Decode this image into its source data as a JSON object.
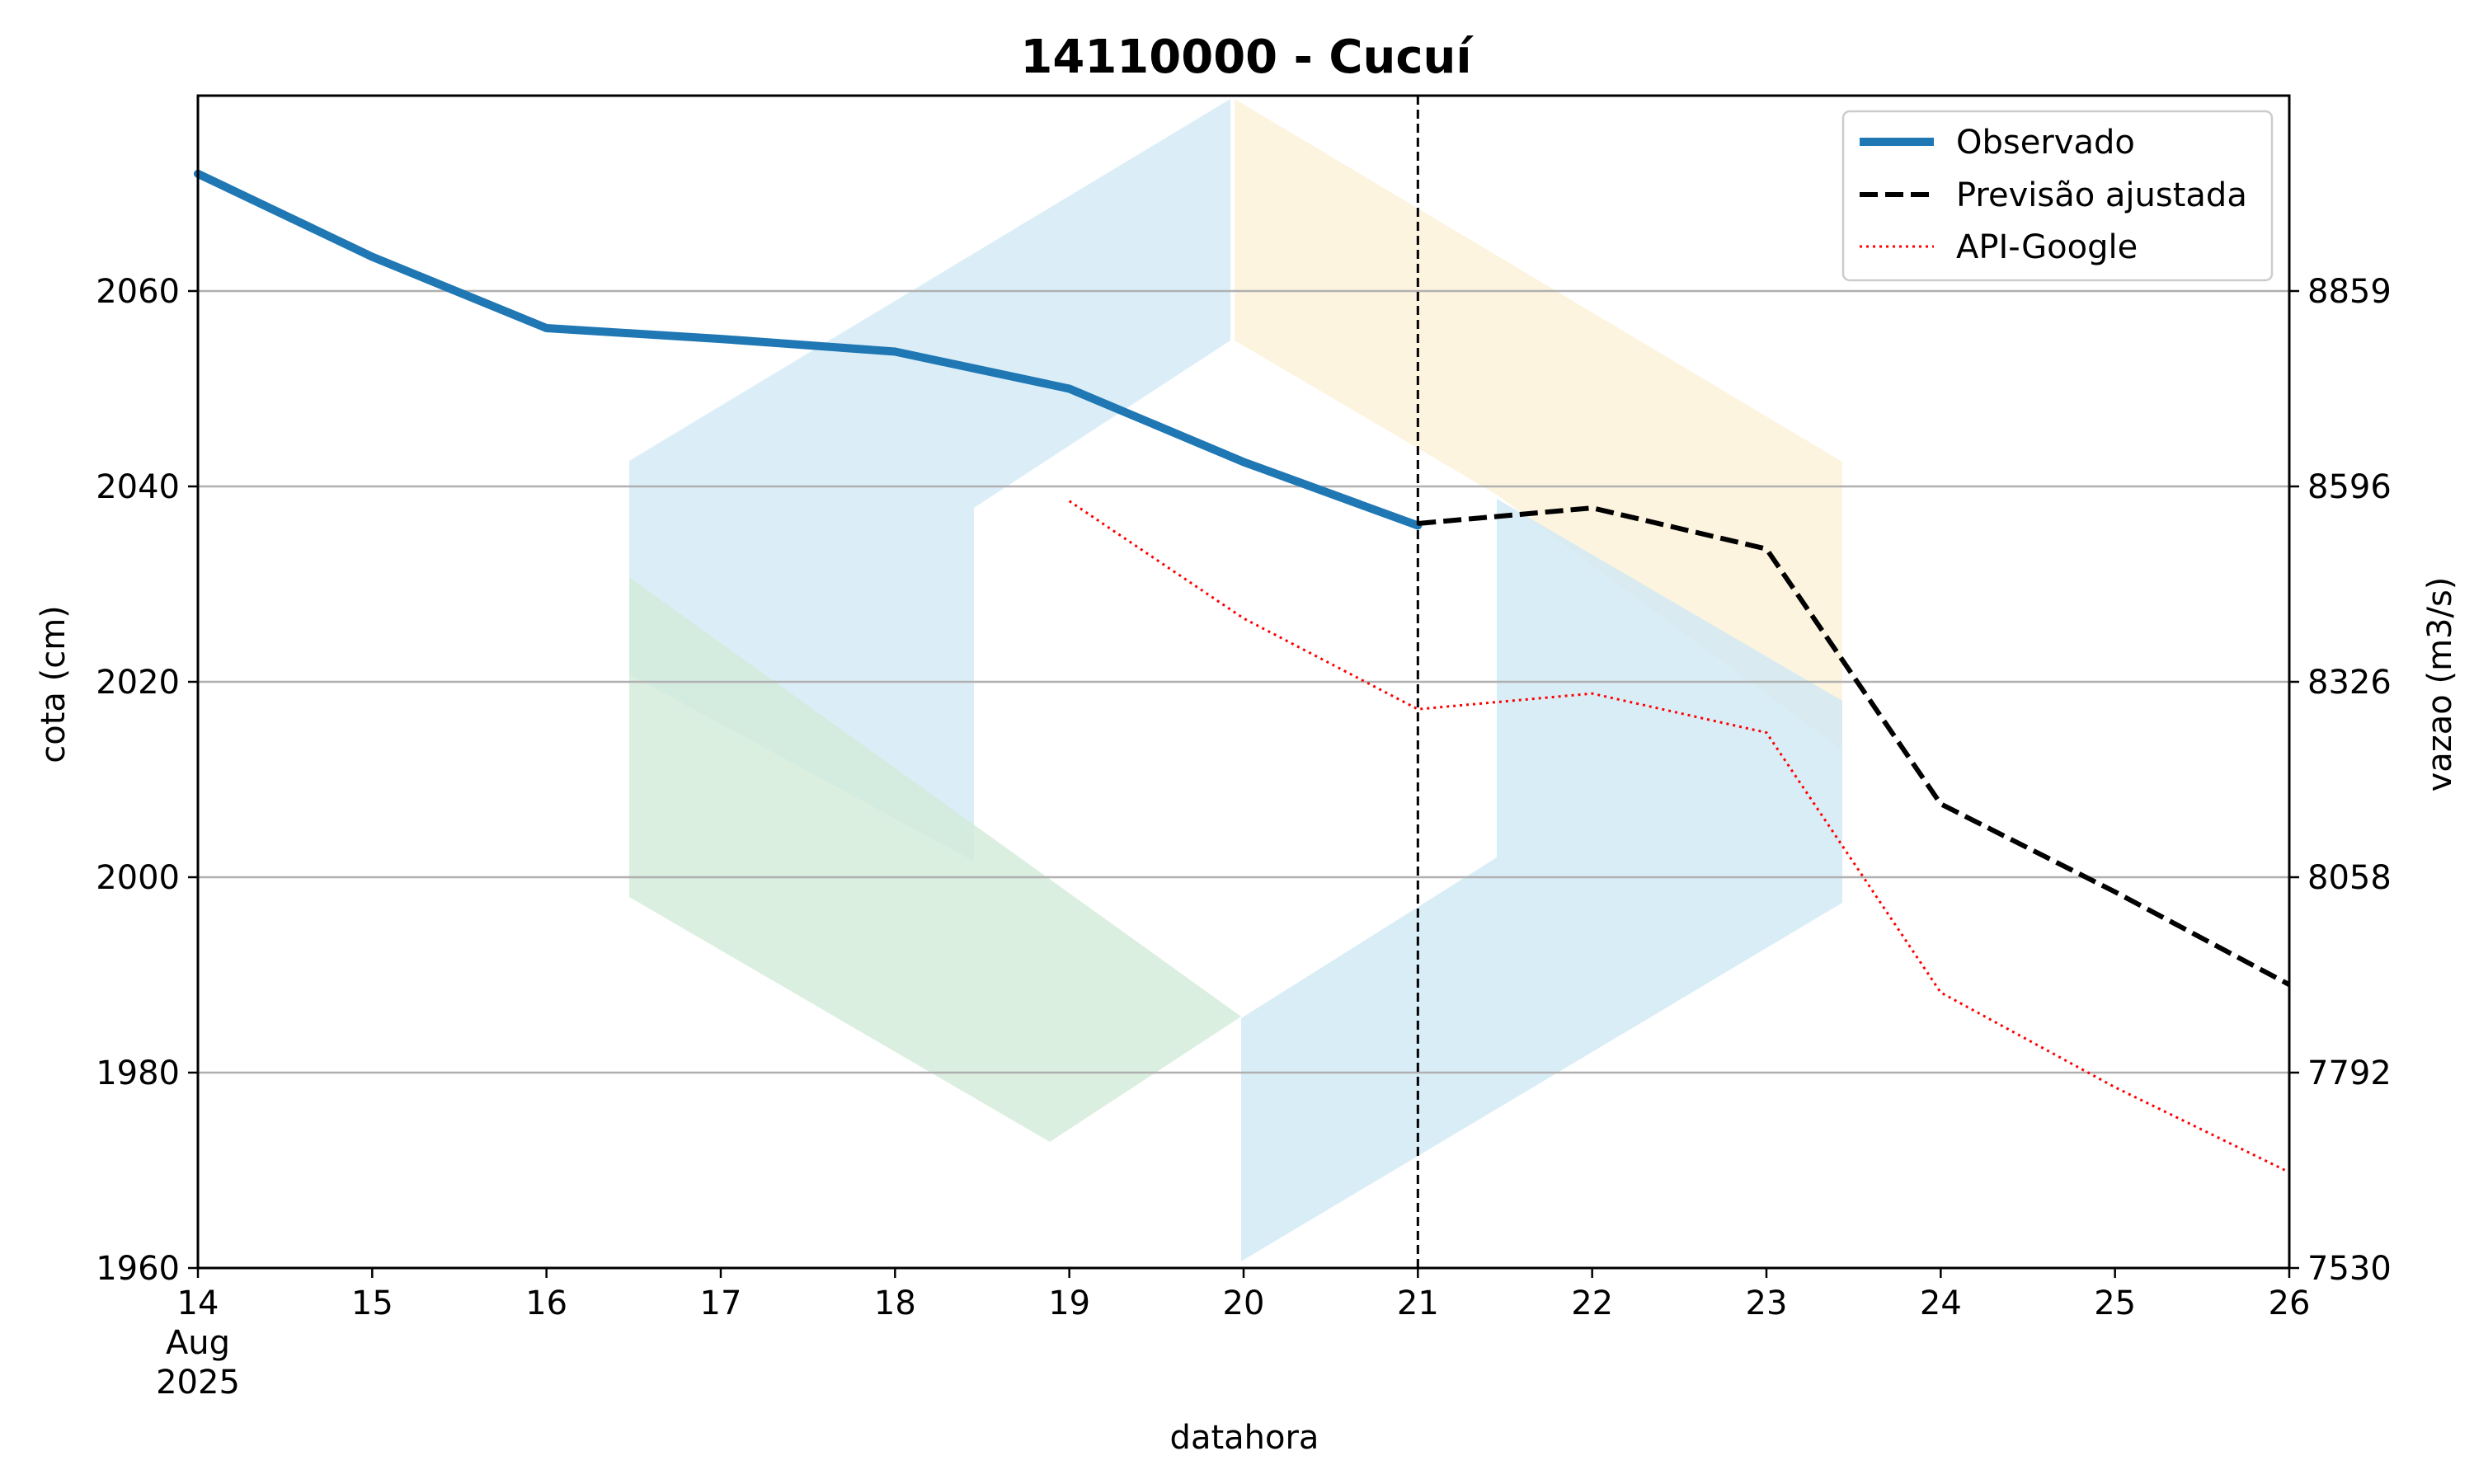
{
  "chart_data": {
    "type": "line",
    "title": "14110000 - Cucuí",
    "xlabel": "datahora",
    "ylabel": "cota (cm)",
    "y2label": "vazao (m3/s)",
    "x_tick_labels": [
      "14",
      "15",
      "16",
      "17",
      "18",
      "19",
      "20",
      "21",
      "22",
      "23",
      "24",
      "25",
      "26"
    ],
    "x_tick_sublabel": [
      "Aug",
      "2025"
    ],
    "x_ticks": [
      "2025-08-14",
      "2025-08-15",
      "2025-08-16",
      "2025-08-17",
      "2025-08-18",
      "2025-08-19",
      "2025-08-20",
      "2025-08-21",
      "2025-08-22",
      "2025-08-23",
      "2025-08-24",
      "2025-08-25",
      "2025-08-26"
    ],
    "xlim": [
      "2025-08-14",
      "2025-08-26"
    ],
    "ylim": [
      1960,
      2080
    ],
    "y_ticks": [
      1960,
      1980,
      2000,
      2020,
      2040,
      2060
    ],
    "y2_tick_labels": [
      "7530",
      "7792",
      "8058",
      "8326",
      "8596",
      "8859"
    ],
    "grid": "horizontal",
    "legend_position": "top-right",
    "vline_x": "2025-08-21",
    "series": [
      {
        "name": "Observado",
        "color": "#1f77b4",
        "style": "solid",
        "points": [
          {
            "x": "2025-08-14",
            "y": 2072
          },
          {
            "x": "2025-08-15",
            "y": 2063.5
          },
          {
            "x": "2025-08-16",
            "y": 2056.2
          },
          {
            "x": "2025-08-17",
            "y": 2055.1
          },
          {
            "x": "2025-08-18",
            "y": 2053.8
          },
          {
            "x": "2025-08-19",
            "y": 2050
          },
          {
            "x": "2025-08-20",
            "y": 2042.5
          },
          {
            "x": "2025-08-21",
            "y": 2036
          }
        ]
      },
      {
        "name": "Previsão ajustada",
        "color": "#000000",
        "style": "dashed",
        "points": [
          {
            "x": "2025-08-21",
            "y": 2036.2
          },
          {
            "x": "2025-08-22",
            "y": 2037.8
          },
          {
            "x": "2025-08-23",
            "y": 2033.6
          },
          {
            "x": "2025-08-24",
            "y": 2007.5
          },
          {
            "x": "2025-08-25",
            "y": 1998.5
          },
          {
            "x": "2025-08-26",
            "y": 1989
          }
        ]
      },
      {
        "name": "API-Google",
        "color": "#ff0000",
        "style": "dotted",
        "points": [
          {
            "x": "2025-08-19",
            "y": 2038.5
          },
          {
            "x": "2025-08-20",
            "y": 2026.5
          },
          {
            "x": "2025-08-21",
            "y": 2017.2
          },
          {
            "x": "2025-08-22",
            "y": 2018.8
          },
          {
            "x": "2025-08-23",
            "y": 2014.8
          },
          {
            "x": "2025-08-24",
            "y": 1988.2
          },
          {
            "x": "2025-08-25",
            "y": 1978.5
          },
          {
            "x": "2025-08-26",
            "y": 1969.8
          }
        ]
      }
    ]
  }
}
